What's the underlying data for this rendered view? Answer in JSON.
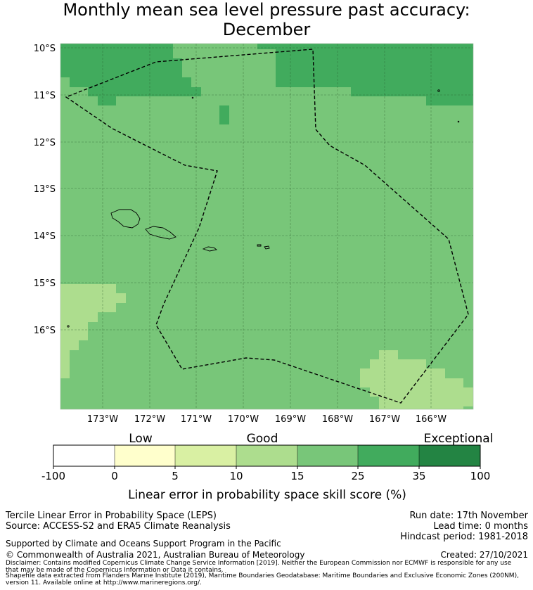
{
  "title": {
    "line1": "Monthly mean sea level pressure past accuracy:",
    "line2": "December"
  },
  "map": {
    "lat_labels": [
      "10°S",
      "11°S",
      "12°S",
      "13°S",
      "14°S",
      "15°S",
      "16°S"
    ],
    "lon_labels": [
      "173°W",
      "172°W",
      "171°W",
      "170°W",
      "169°W",
      "168°W",
      "167°W",
      "166°W"
    ],
    "colors": {
      "low": "#fdfdd0",
      "low_good": "#d9f0a3",
      "good": "#addd8e",
      "good_plus": "#78c679",
      "high": "#41ab5d",
      "exceptional": "#238443"
    }
  },
  "colorbar": {
    "category_labels": [
      "Low",
      "Good",
      "Exceptional"
    ],
    "tick_labels": [
      "-100",
      "0",
      "5",
      "10",
      "15",
      "25",
      "35",
      "100"
    ],
    "colors": [
      "#ffffff",
      "#ffffcc",
      "#d9f0a3",
      "#addd8e",
      "#78c679",
      "#41ab5d",
      "#238443"
    ],
    "axis_label": "Linear error in probability space skill score (%)"
  },
  "footer": {
    "method": "Tercile Linear Error in Probability Space (LEPS)",
    "source": "Source: ACCESS-S2 and ERA5 Climate Reanalysis",
    "run_date": "Run date: 17th November",
    "lead_time": "Lead time: 0 months",
    "hindcast": "Hindcast period: 1981-2018",
    "support": "Supported by Climate and Oceans Support Program in the Pacific",
    "copyright": "© Commonwealth of Australia 2021, Australian Bureau of Meteorology",
    "created": "Created: 27/10/2021",
    "disclaimer1": "Disclaimer: Contains modified Copernicus Climate Change Service Information [2019]. Neither the European Commission nor ECMWF is responsible for any use",
    "disclaimer2": "that may be made of the Copernicus Information or Data it contains.",
    "shapefile1": "Shapefile data extracted from Flanders Marine Institute (2019), Maritime Boundaries Geodatabase: Maritime Boundaries and Exclusive Economic Zones (200NM),",
    "shapefile2": "version 11. Available online at http://www.marineregions.org/."
  }
}
